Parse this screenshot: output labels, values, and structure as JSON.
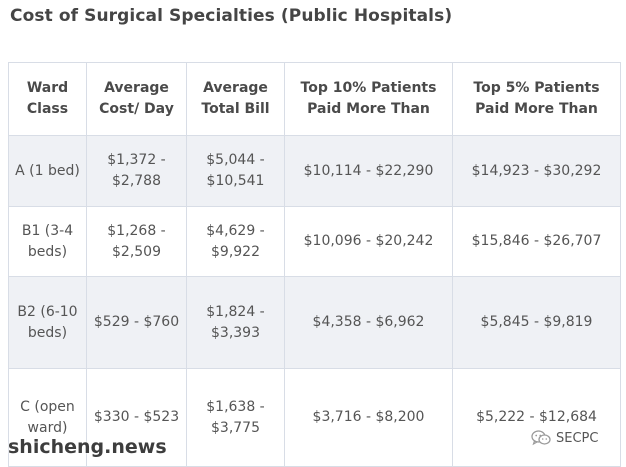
{
  "title": "Cost of Surgical Specialties (Public Hospitals)",
  "table": {
    "headers": {
      "ward_class": "Ward Class",
      "avg_cost_day": "Average Cost/ Day",
      "avg_total_bill": "Average Total Bill",
      "top10": "Top 10% Patients Paid More Than",
      "top5": "Top 5% Patients Paid More Than"
    },
    "rows": [
      {
        "ward_class": "A (1 bed)",
        "avg_cost_day": "$1,372 - $2,788",
        "avg_total_bill": "$5,044 - $10,541",
        "top10": "$10,114 - $22,290",
        "top5": "$14,923 - $30,292"
      },
      {
        "ward_class": "B1 (3-4 beds)",
        "avg_cost_day": "$1,268 - $2,509",
        "avg_total_bill": "$4,629 - $9,922",
        "top10": "$10,096 - $20,242",
        "top5": "$15,846 - $26,707"
      },
      {
        "ward_class": "B2 (6-10 beds)",
        "avg_cost_day": "$529 - $760",
        "avg_total_bill": "$1,824 - $3,393",
        "top10": "$4,358 - $6,962",
        "top5": "$5,845 - $9,819"
      },
      {
        "ward_class": "C (open ward)",
        "avg_cost_day": "$330 - $523",
        "avg_total_bill": "$1,638 - $3,775",
        "top10": "$3,716 - $8,200",
        "top5": "$5,222 - $12,684"
      }
    ]
  },
  "watermark": "shicheng.news",
  "brand": {
    "name": "SECPC",
    "icon": "wechat-icon",
    "icon_color": "#9a9a9a"
  }
}
